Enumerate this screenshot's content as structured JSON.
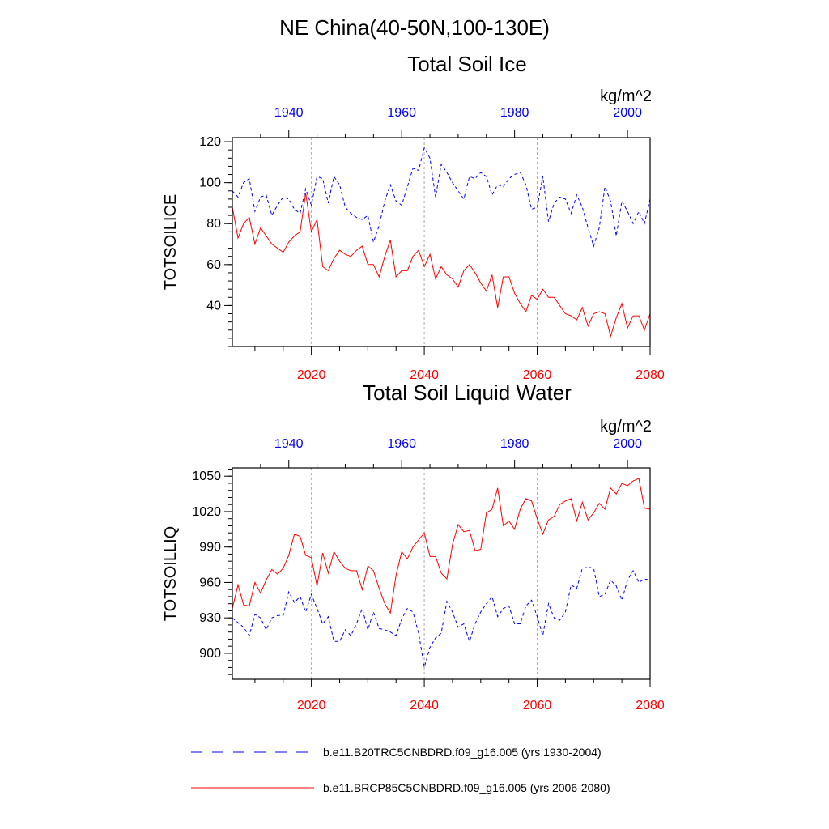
{
  "figure": {
    "suptitle": "NE China(40-50N,100-130E)",
    "panel_titles": [
      "Total Soil Ice",
      "Total Soil Liquid Water"
    ]
  },
  "colors": {
    "historical": "#0000ff",
    "future": "#ff0000",
    "axis": "#000000",
    "gridline": "#aaaaaa"
  },
  "legend": {
    "items": [
      {
        "label": "b.e11.B20TRC5CNBDRD.f09_g16.005 (yrs 1930-2004)",
        "color": "#0000ff",
        "dash": true
      },
      {
        "label": "b.e11.BRCP85C5CNBDRD.f09_g16.005 (yrs 2006-2080)",
        "color": "#ff0000",
        "dash": false
      }
    ]
  },
  "chart_data": [
    {
      "type": "line",
      "title": "Total Soil Ice",
      "ylabel": "TOTSOILICE",
      "units": "kg/m^2",
      "ylim": [
        20,
        122
      ],
      "yticks": [
        40,
        60,
        80,
        100,
        120
      ],
      "y_tick_labels": [
        "40",
        "60",
        "80",
        "100",
        "120"
      ],
      "bottom_axis": {
        "range": [
          2006,
          2080
        ],
        "ticks": [
          2020,
          2040,
          2060,
          2080
        ],
        "labels": [
          "2020",
          "2040",
          "2060",
          "2080"
        ]
      },
      "top_axis": {
        "range": [
          1930,
          2004
        ],
        "ticks": [
          1940,
          1960,
          1980,
          2000
        ],
        "labels": [
          "1940",
          "1960",
          "1980",
          "2000"
        ]
      },
      "series": [
        {
          "name": "b.e11.B20TRC5CNBDRD.f09_g16.005 (yrs 1930-2004)",
          "axis": "top",
          "start_year": 1930,
          "style": "dashed",
          "values": [
            96,
            93,
            100,
            102,
            86,
            93,
            94,
            84,
            89,
            93,
            92,
            87,
            85,
            97,
            89,
            103,
            102,
            90,
            103,
            99,
            88,
            85,
            83,
            82,
            84,
            71,
            79,
            91,
            99,
            91,
            89,
            98,
            107,
            106,
            117,
            112,
            93,
            109,
            105,
            100,
            96,
            92,
            103,
            102,
            105,
            103,
            94,
            99,
            98,
            102,
            104,
            105,
            99,
            87,
            88,
            103,
            81,
            90,
            93,
            92,
            85,
            94,
            88,
            78,
            69,
            78,
            98,
            91,
            74,
            91,
            86,
            80,
            86,
            80,
            92
          ]
        },
        {
          "name": "b.e11.BRCP85C5CNBDRD.f09_g16.005 (yrs 2006-2080)",
          "axis": "bottom",
          "start_year": 2006,
          "style": "solid",
          "values": [
            88,
            73,
            80,
            83,
            70,
            78,
            74,
            70,
            68,
            66,
            71,
            74,
            76,
            95,
            76,
            82,
            59,
            57,
            63,
            67,
            65,
            64,
            67,
            69,
            60,
            60,
            54,
            64,
            72,
            54,
            57,
            57,
            64,
            67,
            59,
            65,
            53,
            59,
            55,
            53,
            49,
            57,
            60,
            56,
            51,
            47,
            55,
            39,
            54,
            54,
            46,
            41,
            37,
            45,
            43,
            48,
            44,
            44,
            40,
            36,
            35,
            33,
            39,
            30,
            36,
            37,
            36,
            25,
            34,
            41,
            29,
            35,
            35,
            28,
            36
          ]
        }
      ]
    },
    {
      "type": "line",
      "title": "Total Soil Liquid Water",
      "ylabel": "TOTSOILLIQ",
      "units": "kg/m^2",
      "ylim": [
        878,
        1057
      ],
      "yticks": [
        900,
        930,
        960,
        990,
        1020,
        1050
      ],
      "y_tick_labels": [
        "900",
        "930",
        "960",
        "990",
        "1020",
        "1050"
      ],
      "bottom_axis": {
        "range": [
          2006,
          2080
        ],
        "ticks": [
          2020,
          2040,
          2060,
          2080
        ],
        "labels": [
          "2020",
          "2040",
          "2060",
          "2080"
        ]
      },
      "top_axis": {
        "range": [
          1930,
          2004
        ],
        "ticks": [
          1940,
          1960,
          1980,
          2000
        ],
        "labels": [
          "1940",
          "1960",
          "1980",
          "2000"
        ]
      },
      "series": [
        {
          "name": "b.e11.B20TRC5CNBDRD.f09_g16.005 (yrs 1930-2004)",
          "axis": "top",
          "start_year": 1930,
          "style": "dashed",
          "values": [
            930,
            926,
            922,
            915,
            933,
            930,
            920,
            930,
            932,
            932,
            952,
            943,
            948,
            935,
            950,
            938,
            925,
            931,
            910,
            910,
            920,
            915,
            925,
            938,
            920,
            935,
            921,
            920,
            918,
            915,
            929,
            938,
            935,
            917,
            888,
            905,
            913,
            917,
            944,
            935,
            922,
            925,
            910,
            925,
            935,
            942,
            948,
            931,
            938,
            940,
            925,
            925,
            940,
            945,
            931,
            915,
            942,
            930,
            928,
            935,
            958,
            955,
            972,
            973,
            972,
            948,
            950,
            962,
            957,
            945,
            962,
            970,
            960,
            963,
            962
          ]
        },
        {
          "name": "b.e11.BRCP85C5CNBDRD.f09_g16.005 (yrs 2006-2080)",
          "axis": "bottom",
          "start_year": 2006,
          "style": "solid",
          "values": [
            938,
            958,
            941,
            940,
            960,
            951,
            962,
            971,
            967,
            972,
            983,
            1001,
            999,
            983,
            981,
            957,
            985,
            968,
            986,
            978,
            972,
            970,
            970,
            954,
            974,
            970,
            955,
            942,
            934,
            966,
            986,
            980,
            990,
            996,
            1002,
            982,
            982,
            968,
            963,
            992,
            1009,
            1003,
            1004,
            987,
            988,
            1019,
            1022,
            1040,
            1008,
            1012,
            1005,
            1022,
            1031,
            1029,
            1014,
            1001,
            1013,
            1016,
            1026,
            1029,
            1031,
            1012,
            1028,
            1013,
            1019,
            1027,
            1022,
            1040,
            1035,
            1044,
            1042,
            1046,
            1048,
            1023,
            1022
          ]
        }
      ]
    }
  ]
}
